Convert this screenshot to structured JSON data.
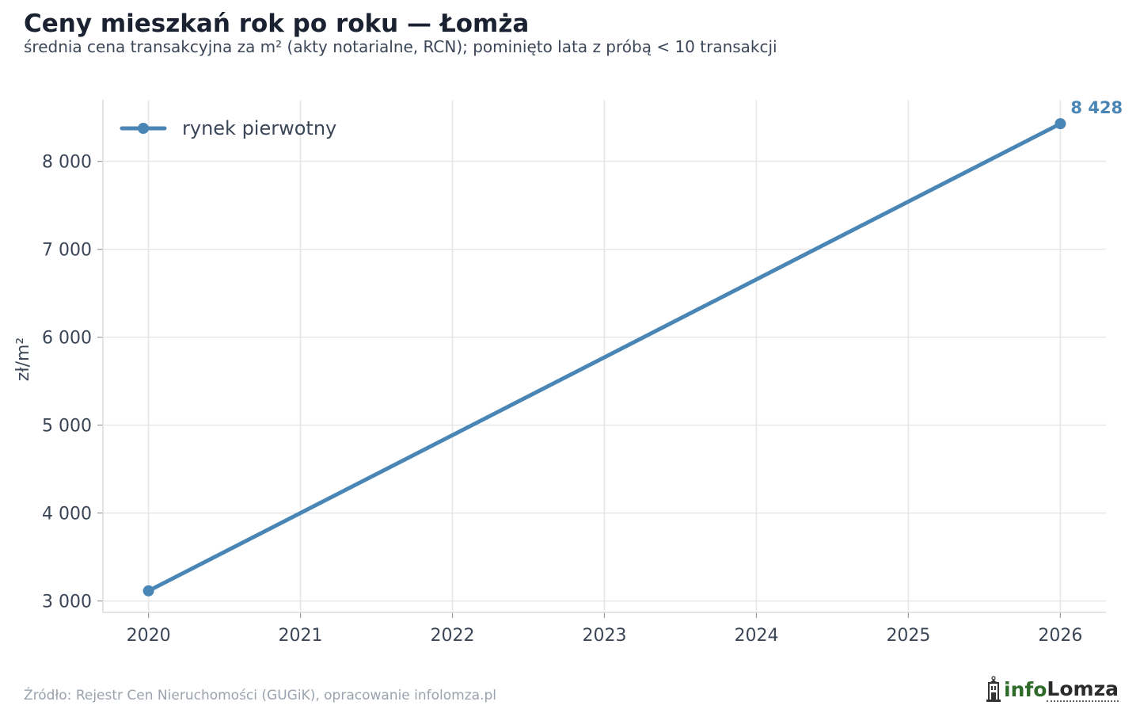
{
  "chart_data": {
    "type": "line",
    "title": "Ceny mieszkań rok po roku — Łomża",
    "subtitle": "średnia cena transakcyjna za m² (akty notarialne, RCN); pominięto lata z próbą < 10 transakcji",
    "xlabel": "",
    "ylabel": "zł/m²",
    "x": [
      2020,
      2026
    ],
    "x_ticks": [
      "2020",
      "2021",
      "2022",
      "2023",
      "2024",
      "2025",
      "2026"
    ],
    "y_ticks": [
      3000,
      4000,
      5000,
      6000,
      7000,
      8000
    ],
    "y_tick_labels": [
      "3 000",
      "4 000",
      "5 000",
      "6 000",
      "7 000",
      "8 000"
    ],
    "xlim": [
      2019.7,
      2026.3
    ],
    "ylim": [
      2870,
      8700
    ],
    "grid": true,
    "legend_position": "top-left",
    "series": [
      {
        "name": "rynek pierwotny",
        "color": "#4a86b5",
        "x": [
          2020,
          2026
        ],
        "values": [
          3115,
          8428
        ],
        "end_label": "8 428"
      }
    ]
  },
  "footer": {
    "source": "Źródło: Rejestr Cen Nieruchomości (GUGiK), opracowanie infolomza.pl",
    "logo_info": "info",
    "logo_name": "Lomza"
  }
}
